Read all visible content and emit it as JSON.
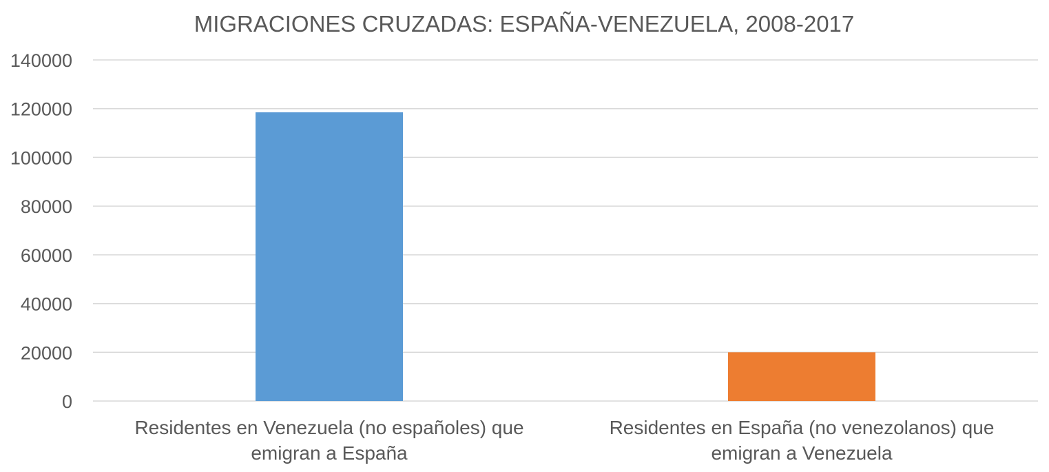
{
  "chart_data": {
    "type": "bar",
    "title": "MIGRACIONES CRUZADAS: ESPAÑA-VENEZUELA, 2008-2017",
    "xlabel": "",
    "ylabel": "",
    "ylim": [
      0,
      140000
    ],
    "yticks": [
      "0",
      "20000",
      "40000",
      "60000",
      "80000",
      "100000",
      "120000",
      "140000"
    ],
    "grid": true,
    "categories": [
      {
        "label_lines": [
          "Residentes en Venezuela (no españoles) que",
          "emigran a España"
        ],
        "value": 118500,
        "color": "#5b9bd5"
      },
      {
        "label_lines": [
          "Residentes en España (no venezolanos) que",
          "emigran a Venezuela"
        ],
        "value": 20000,
        "color": "#ed7d31"
      }
    ]
  }
}
